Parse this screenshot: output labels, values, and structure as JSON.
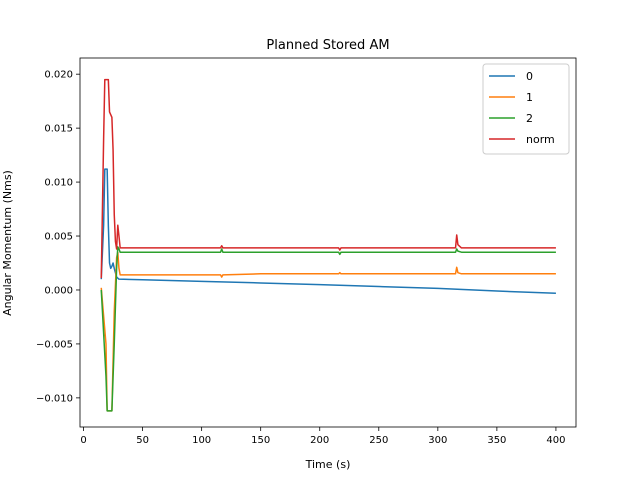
{
  "chart_data": {
    "type": "line",
    "title": "Planned Stored AM",
    "xlabel": "Time (s)",
    "ylabel": "Angular Momentum (Nms)",
    "xlim": [
      -3,
      417
    ],
    "ylim": [
      -0.0127,
      0.0215
    ],
    "xticks": [
      0,
      50,
      100,
      150,
      200,
      250,
      300,
      350,
      400
    ],
    "yticks": [
      -0.01,
      -0.005,
      0.0,
      0.005,
      0.01,
      0.015,
      0.02
    ],
    "xtick_labels": [
      "0",
      "50",
      "100",
      "150",
      "200",
      "250",
      "300",
      "350",
      "400"
    ],
    "ytick_labels": [
      "−0.010",
      "−0.005",
      "0.000",
      "0.005",
      "0.010",
      "0.015",
      "0.020"
    ],
    "grid": false,
    "legend_position": "top-right",
    "series": [
      {
        "name": "0",
        "color": "#1f77b4",
        "points": [
          [
            15,
            0.001
          ],
          [
            17,
            0.006
          ],
          [
            18,
            0.0112
          ],
          [
            20,
            0.0112
          ],
          [
            21,
            0.006
          ],
          [
            22,
            0.0025
          ],
          [
            23,
            0.002
          ],
          [
            24,
            0.0022
          ],
          [
            25,
            0.0025
          ],
          [
            26,
            0.002
          ],
          [
            28,
            0.0012
          ],
          [
            30,
            0.001
          ],
          [
            50,
            0.00095
          ],
          [
            100,
            0.0008
          ],
          [
            150,
            0.00065
          ],
          [
            200,
            0.0005
          ],
          [
            250,
            0.00032
          ],
          [
            300,
            0.00015
          ],
          [
            350,
            -0.0001
          ],
          [
            400,
            -0.0003
          ]
        ]
      },
      {
        "name": "1",
        "color": "#ff7f0e",
        "points": [
          [
            15,
            0.0002
          ],
          [
            19,
            -0.005
          ],
          [
            20,
            -0.0112
          ],
          [
            24,
            -0.0112
          ],
          [
            26,
            -0.002
          ],
          [
            28,
            0.003
          ],
          [
            29,
            0.0035
          ],
          [
            30,
            0.002
          ],
          [
            31,
            0.0014
          ],
          [
            50,
            0.0014
          ],
          [
            100,
            0.0014
          ],
          [
            116,
            0.0014
          ],
          [
            117,
            0.0012
          ],
          [
            118,
            0.0014
          ],
          [
            150,
            0.0015
          ],
          [
            200,
            0.0015
          ],
          [
            216,
            0.0015
          ],
          [
            217,
            0.0016
          ],
          [
            218,
            0.0015
          ],
          [
            250,
            0.0015
          ],
          [
            300,
            0.0015
          ],
          [
            315,
            0.0015
          ],
          [
            316,
            0.0021
          ],
          [
            317,
            0.0016
          ],
          [
            320,
            0.0015
          ],
          [
            350,
            0.0015
          ],
          [
            400,
            0.0015
          ]
        ]
      },
      {
        "name": "2",
        "color": "#2ca02c",
        "points": [
          [
            15,
            0.0
          ],
          [
            19,
            -0.008
          ],
          [
            20,
            -0.0112
          ],
          [
            24,
            -0.0112
          ],
          [
            26,
            -0.005
          ],
          [
            28,
            0.002
          ],
          [
            29,
            0.004
          ],
          [
            30,
            0.0038
          ],
          [
            31,
            0.0035
          ],
          [
            50,
            0.0035
          ],
          [
            100,
            0.0035
          ],
          [
            116,
            0.0035
          ],
          [
            117,
            0.0038
          ],
          [
            118,
            0.0035
          ],
          [
            150,
            0.0035
          ],
          [
            200,
            0.0035
          ],
          [
            216,
            0.0035
          ],
          [
            217,
            0.0033
          ],
          [
            218,
            0.0035
          ],
          [
            250,
            0.0035
          ],
          [
            300,
            0.0035
          ],
          [
            315,
            0.0035
          ],
          [
            316,
            0.0038
          ],
          [
            317,
            0.0036
          ],
          [
            320,
            0.0035
          ],
          [
            350,
            0.0035
          ],
          [
            400,
            0.0035
          ]
        ]
      },
      {
        "name": "norm",
        "color": "#d62728",
        "points": [
          [
            15,
            0.0011
          ],
          [
            17,
            0.014
          ],
          [
            18,
            0.0195
          ],
          [
            21,
            0.0195
          ],
          [
            22,
            0.0165
          ],
          [
            24,
            0.016
          ],
          [
            25,
            0.013
          ],
          [
            26,
            0.007
          ],
          [
            27,
            0.0045
          ],
          [
            28,
            0.0038
          ],
          [
            29,
            0.006
          ],
          [
            30,
            0.005
          ],
          [
            31,
            0.0039
          ],
          [
            50,
            0.0039
          ],
          [
            100,
            0.0039
          ],
          [
            116,
            0.0039
          ],
          [
            117,
            0.0041
          ],
          [
            118,
            0.0039
          ],
          [
            150,
            0.0039
          ],
          [
            200,
            0.0039
          ],
          [
            216,
            0.0039
          ],
          [
            217,
            0.0037
          ],
          [
            218,
            0.0039
          ],
          [
            250,
            0.0039
          ],
          [
            300,
            0.0039
          ],
          [
            315,
            0.0039
          ],
          [
            316,
            0.0051
          ],
          [
            317,
            0.0042
          ],
          [
            320,
            0.0039
          ],
          [
            350,
            0.0039
          ],
          [
            400,
            0.0039
          ]
        ]
      }
    ]
  }
}
